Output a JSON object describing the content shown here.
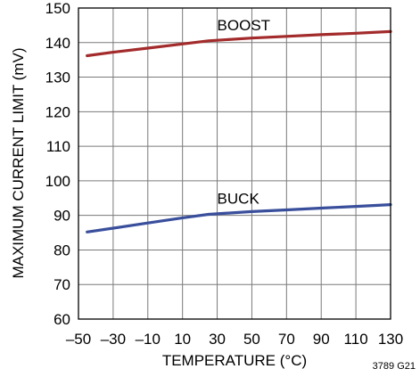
{
  "chart_data": {
    "type": "line",
    "xlabel": "TEMPERATURE (°C)",
    "ylabel": "MAXIMUM CURRENT LIMIT (mV)",
    "xlim": [
      -50,
      130
    ],
    "ylim": [
      60,
      150
    ],
    "xticks": [
      "–50",
      "–30",
      "–10",
      "10",
      "30",
      "50",
      "70",
      "90",
      "110",
      "130"
    ],
    "yticks": [
      "60",
      "70",
      "80",
      "90",
      "100",
      "110",
      "120",
      "130",
      "140",
      "150"
    ],
    "grid": true,
    "series": [
      {
        "name": "BOOST",
        "color": "#a32b2b",
        "x": [
          -45,
          -30,
          -10,
          10,
          25,
          50,
          70,
          90,
          110,
          130
        ],
        "y": [
          136.2,
          137.2,
          138.4,
          139.6,
          140.5,
          141.3,
          141.8,
          142.3,
          142.7,
          143.2
        ]
      },
      {
        "name": "BUCK",
        "color": "#3a4f9c",
        "x": [
          -45,
          -30,
          -10,
          10,
          25,
          50,
          70,
          90,
          110,
          130
        ],
        "y": [
          85.2,
          86.3,
          87.8,
          89.3,
          90.3,
          91.1,
          91.6,
          92.1,
          92.6,
          93.1
        ]
      }
    ],
    "figure_id": "3789 G21"
  }
}
